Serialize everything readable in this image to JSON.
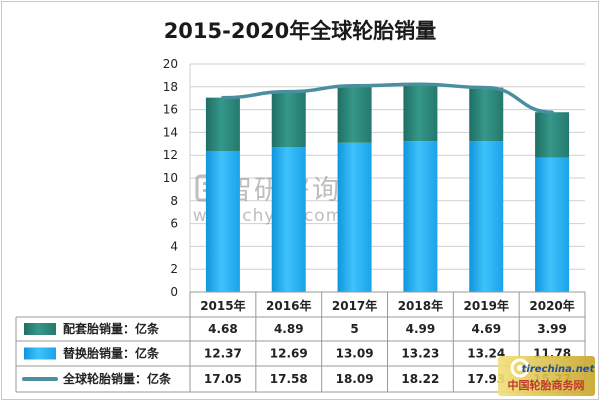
{
  "colors": {
    "oe": "#2e8b7f",
    "oe_dark": "#1f6b61",
    "rep": "#1eaaf0",
    "rep_light": "#5fd0ff",
    "total": "#4a8ea0",
    "grid": "#cfcfcf",
    "border": "#999999"
  },
  "watermark": {
    "name": "智研咨询",
    "url": "www.chyxx.com"
  },
  "site_badge": {
    "en": "tirechina.net",
    "cn": "中国轮胎商务网"
  },
  "chart_data": {
    "type": "bar",
    "stacked": true,
    "title": "2015-2020年全球轮胎销量",
    "categories": [
      "2015年",
      "2016年",
      "2017年",
      "2018年",
      "2019年",
      "2020年"
    ],
    "series": [
      {
        "name": "配套胎销量：亿条",
        "type": "bar",
        "values": [
          4.68,
          4.89,
          5,
          4.99,
          4.69,
          3.99
        ],
        "display": [
          "4.68",
          "4.89",
          "5",
          "4.99",
          "4.69",
          "3.99"
        ]
      },
      {
        "name": "替换胎销量：亿条",
        "type": "bar",
        "values": [
          12.37,
          12.69,
          13.09,
          13.23,
          13.24,
          11.78
        ],
        "display": [
          "12.37",
          "12.69",
          "13.09",
          "13.23",
          "13.24",
          "11.78"
        ]
      },
      {
        "name": "全球轮胎销量：亿条",
        "type": "line",
        "values": [
          17.05,
          17.58,
          18.09,
          18.22,
          17.93,
          15.77
        ],
        "display": [
          "17.05",
          "17.58",
          "18.09",
          "18.22",
          "17.93",
          "15.77"
        ]
      }
    ],
    "ylim": [
      0,
      20
    ],
    "yticks": [
      "0",
      "2",
      "4",
      "6",
      "8",
      "10",
      "12",
      "14",
      "16",
      "18",
      "20"
    ],
    "grid": true,
    "legend": "data-table-below"
  }
}
